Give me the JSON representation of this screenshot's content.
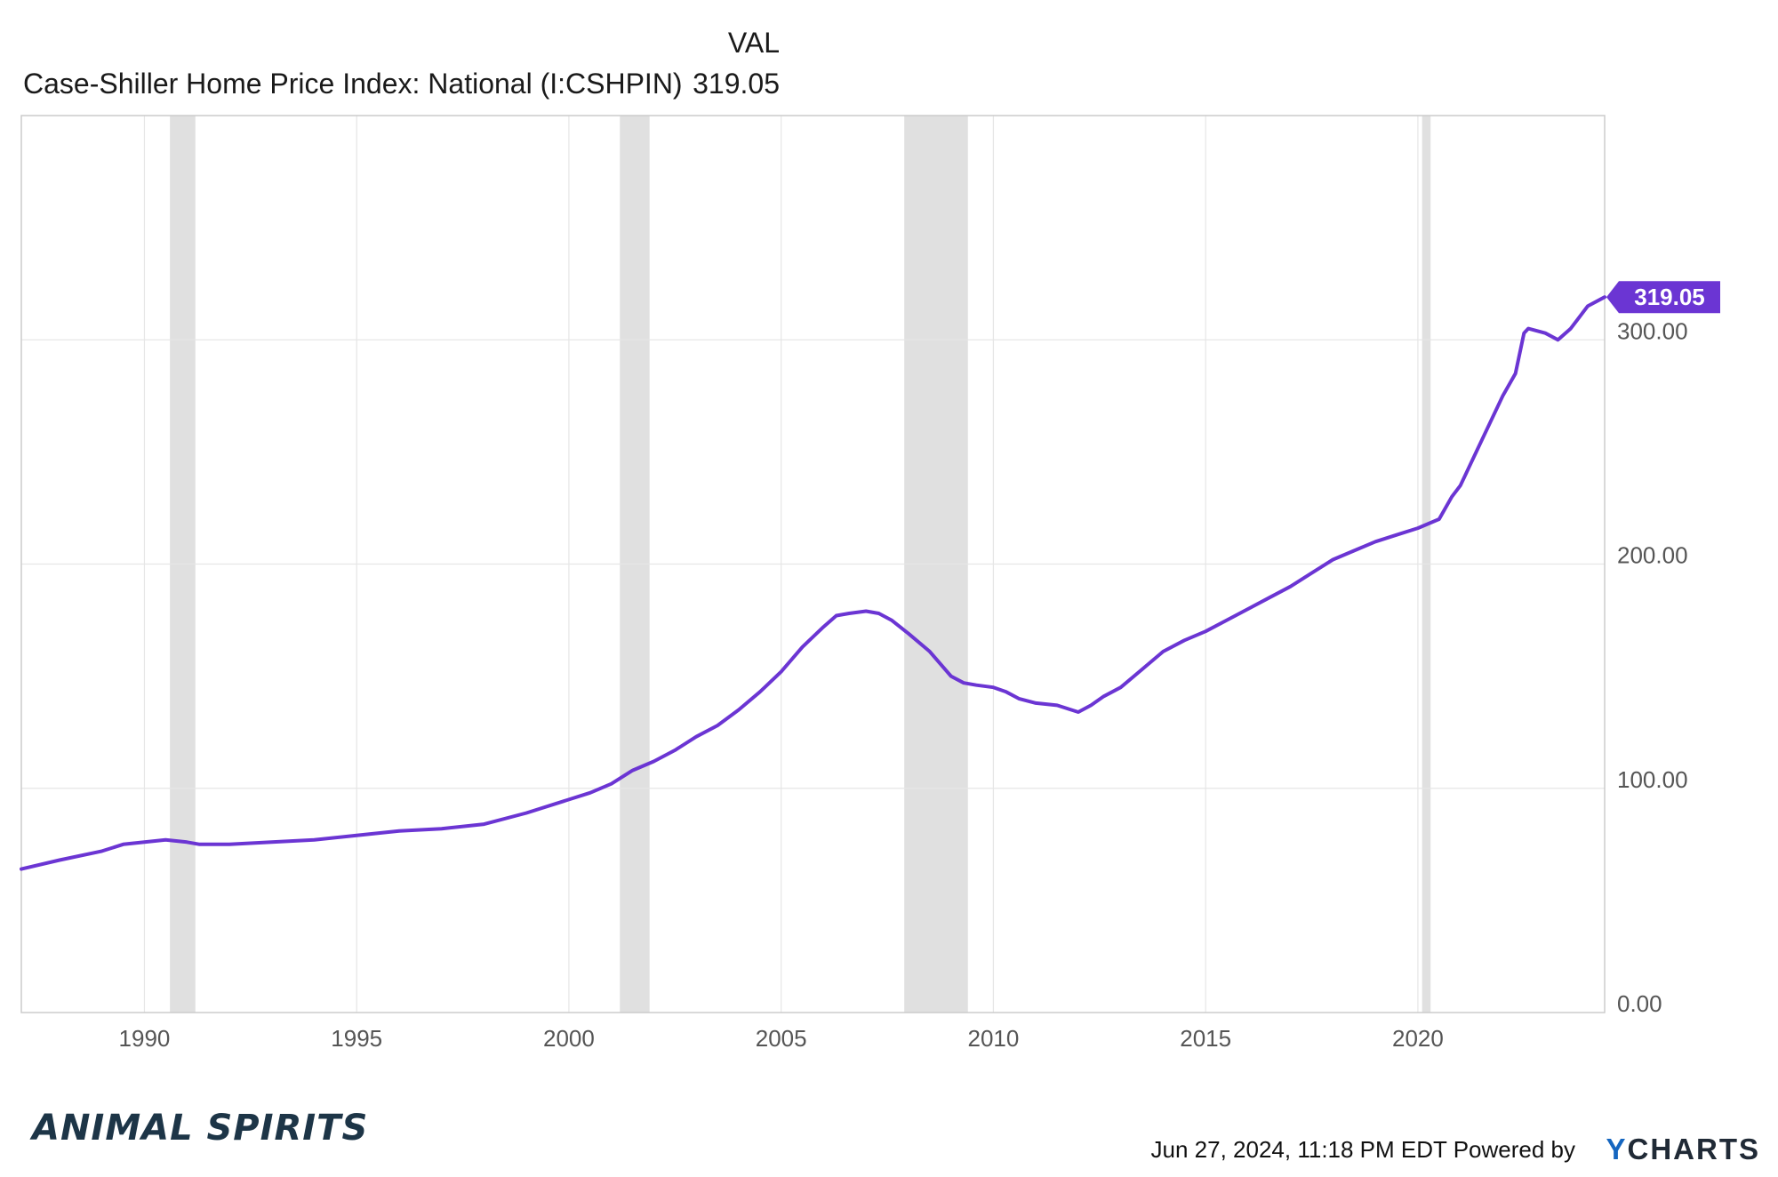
{
  "header": {
    "column_label": "VAL",
    "series_name": "Case-Shiller Home Price Index: National (I:CSHPIN)",
    "series_value": "319.05"
  },
  "footer": {
    "brand": "ANIMAL SPIRITS",
    "timestamp": "Jun 27, 2024, 11:18 PM EDT",
    "powered_by": "Powered by",
    "logo_y": "Y",
    "logo_rest": "CHARTS"
  },
  "colors": {
    "line": "#6b35d3",
    "recession": "#e0e0e0",
    "grid": "#e6e6e6",
    "axis_text": "#555555",
    "value_tag": "#6b35d3"
  },
  "chart_data": {
    "type": "line",
    "title": "",
    "xlabel": "",
    "ylabel": "",
    "xlim": [
      1987.1,
      2024.4
    ],
    "ylim": [
      0,
      400
    ],
    "x_ticks": [
      "1990",
      "1995",
      "2000",
      "2005",
      "2010",
      "2015",
      "2020"
    ],
    "y_ticks": [
      "0.00",
      "100.00",
      "200.00",
      "300.00"
    ],
    "y_tick_values": [
      0,
      100,
      200,
      300
    ],
    "y_axis_position": "right",
    "grid": true,
    "last_value_label": "319.05",
    "last_value": 319.05,
    "recession_bands": [
      [
        1990.6,
        1991.2
      ],
      [
        2001.2,
        2001.9
      ],
      [
        2007.9,
        2009.4
      ],
      [
        2020.1,
        2020.3
      ]
    ],
    "series": [
      {
        "name": "Case-Shiller Home Price Index: National (I:CSHPIN)",
        "x": [
          1987.1,
          1988.0,
          1989.0,
          1989.5,
          1990.0,
          1990.5,
          1991.0,
          1991.3,
          1992.0,
          1993.0,
          1994.0,
          1995.0,
          1996.0,
          1997.0,
          1998.0,
          1999.0,
          2000.0,
          2000.5,
          2001.0,
          2001.5,
          2002.0,
          2002.5,
          2003.0,
          2003.5,
          2004.0,
          2004.5,
          2005.0,
          2005.5,
          2006.0,
          2006.3,
          2006.6,
          2007.0,
          2007.3,
          2007.6,
          2008.0,
          2008.5,
          2009.0,
          2009.3,
          2009.6,
          2010.0,
          2010.3,
          2010.6,
          2011.0,
          2011.5,
          2012.0,
          2012.3,
          2012.6,
          2013.0,
          2013.5,
          2014.0,
          2014.5,
          2015.0,
          2015.5,
          2016.0,
          2016.5,
          2017.0,
          2017.5,
          2018.0,
          2018.5,
          2019.0,
          2019.5,
          2020.0,
          2020.5,
          2020.8,
          2021.0,
          2021.5,
          2022.0,
          2022.3,
          2022.5,
          2022.6,
          2023.0,
          2023.3,
          2023.6,
          2024.0,
          2024.4
        ],
        "values": [
          64,
          68,
          72,
          75,
          76,
          77,
          76,
          75,
          75,
          76,
          77,
          79,
          81,
          82,
          84,
          89,
          95,
          98,
          102,
          108,
          112,
          117,
          123,
          128,
          135,
          143,
          152,
          163,
          172,
          177,
          178,
          179,
          178,
          175,
          169,
          161,
          150,
          147,
          146,
          145,
          143,
          140,
          138,
          137,
          134,
          137,
          141,
          145,
          153,
          161,
          166,
          170,
          175,
          180,
          185,
          190,
          196,
          202,
          206,
          210,
          213,
          216,
          220,
          230,
          235,
          255,
          275,
          285,
          303,
          305,
          303,
          300,
          305,
          315,
          319.05
        ]
      }
    ]
  }
}
